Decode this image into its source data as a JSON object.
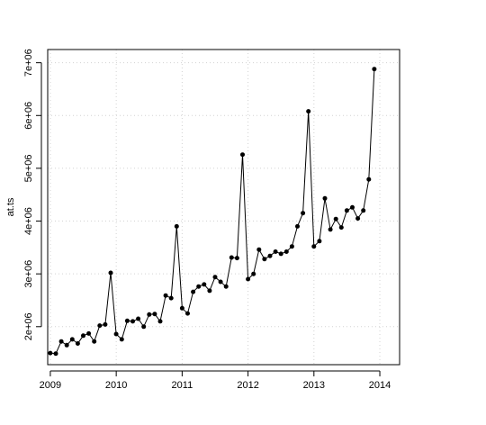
{
  "chart_data": {
    "type": "line",
    "ylabel": "at.ts",
    "xlabel": "",
    "title": "",
    "xlim": [
      2008.96,
      2014.3
    ],
    "ylim": [
      1280000,
      7250000
    ],
    "xticks": [
      "2009",
      "2010",
      "2011",
      "2012",
      "2013",
      "2014"
    ],
    "yticks": [
      "2e+06",
      "3e+06",
      "4e+06",
      "5e+06",
      "6e+06",
      "7e+06"
    ],
    "grid": "dotted",
    "series": [
      {
        "start": 2009.0,
        "frequency": 12,
        "values": [
          1500000,
          1490000,
          1720000,
          1650000,
          1760000,
          1680000,
          1830000,
          1870000,
          1720000,
          2020000,
          2040000,
          3020000,
          1860000,
          1760000,
          2110000,
          2100000,
          2150000,
          2000000,
          2230000,
          2240000,
          2100000,
          2590000,
          2540000,
          3900000,
          2350000,
          2250000,
          2660000,
          2760000,
          2800000,
          2680000,
          2940000,
          2850000,
          2760000,
          3310000,
          3300000,
          5260000,
          2900000,
          3000000,
          3460000,
          3280000,
          3340000,
          3420000,
          3380000,
          3420000,
          3520000,
          3900000,
          4150000,
          6080000,
          3520000,
          3620000,
          4430000,
          3840000,
          4040000,
          3880000,
          4200000,
          4260000,
          4050000,
          4200000,
          4790000,
          6880000
        ]
      }
    ],
    "colors": {
      "line": "#000000",
      "points": "#000000",
      "grid": "#d3d3d3"
    }
  }
}
